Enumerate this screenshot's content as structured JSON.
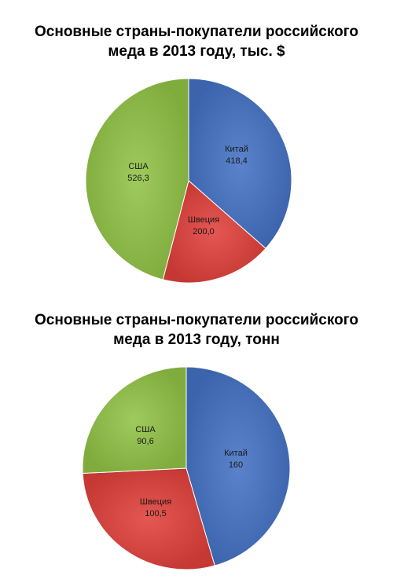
{
  "charts": [
    {
      "title_line1": "Основные страны-покупатели российского",
      "title_line2": "меда в 2013 году, тыс. $"
    },
    {
      "title_line1": "Основные страны-покупатели российского",
      "title_line2": "меда в 2013 году, тонн"
    }
  ],
  "chart_data": [
    {
      "type": "pie",
      "title": "Основные страны-покупатели российского меда в 2013 году, тыс. $",
      "slices": [
        {
          "label": "Китай",
          "value": 418.4,
          "value_text": "418,4",
          "color": "#4472C4"
        },
        {
          "label": "Швеция",
          "value": 200.0,
          "value_text": "200,0",
          "color": "#E0403A"
        },
        {
          "label": "США",
          "value": 526.3,
          "value_text": "526,3",
          "color": "#92C347"
        }
      ]
    },
    {
      "type": "pie",
      "title": "Основные страны-покупатели российского меда в 2013 году, тонн",
      "slices": [
        {
          "label": "Китай",
          "value": 160,
          "value_text": "160",
          "color": "#4472C4"
        },
        {
          "label": "Швеция",
          "value": 100.5,
          "value_text": "100,5",
          "color": "#E0403A"
        },
        {
          "label": "США",
          "value": 90.6,
          "value_text": "90,6",
          "color": "#92C347"
        }
      ]
    }
  ]
}
